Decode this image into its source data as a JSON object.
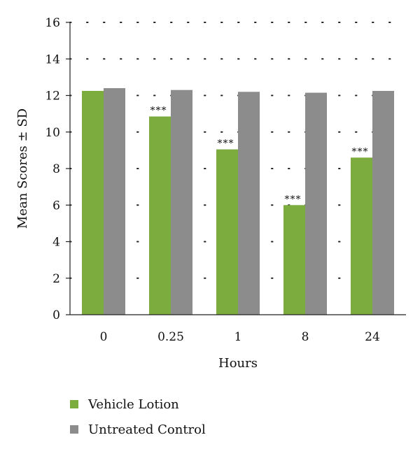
{
  "chart_data": {
    "type": "bar",
    "title": "",
    "xlabel": "Hours",
    "ylabel": "Mean Scores ± SD",
    "categories": [
      "0",
      "0.25",
      "1",
      "8",
      "24"
    ],
    "ylim": [
      0,
      16
    ],
    "yticks": [
      "0",
      "2",
      "4",
      "6",
      "8",
      "10",
      "12",
      "14",
      "16"
    ],
    "grid": "horizontal dotted",
    "legend_position": "bottom-left",
    "series": [
      {
        "name": "Vehicle Lotion",
        "color": "#7cab3e",
        "values": [
          12.25,
          10.85,
          9.05,
          6.0,
          8.6
        ],
        "annotations": [
          "",
          "***",
          "***",
          "***",
          "***"
        ]
      },
      {
        "name": "Untreated Control",
        "color": "#8c8c8c",
        "values": [
          12.4,
          12.3,
          12.2,
          12.15,
          12.25
        ],
        "annotations": [
          "",
          "",
          "",
          "",
          ""
        ]
      }
    ]
  }
}
